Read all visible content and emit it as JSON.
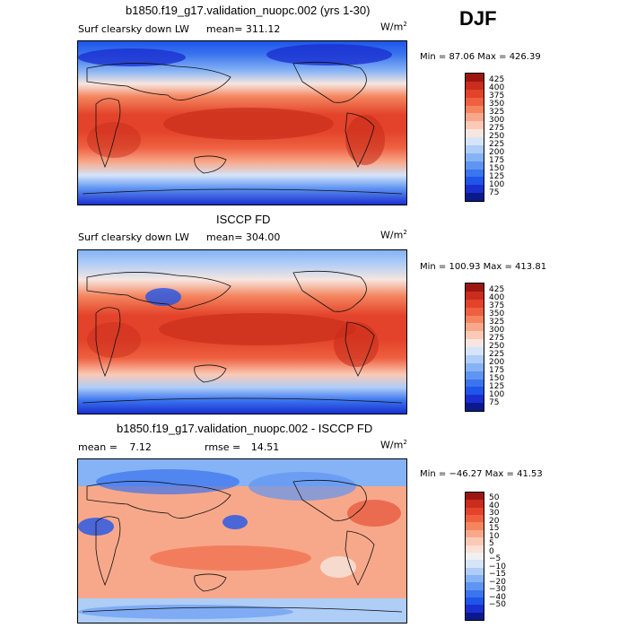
{
  "season": "DJF",
  "units": "W/m",
  "units_sup": "2",
  "palette_pos": [
    "#0a1a8c",
    "#1a2fd0",
    "#1f55e8",
    "#3a74ef",
    "#5f95f2",
    "#86b3f5",
    "#aecdf7",
    "#d5e4f9",
    "#f6e6df",
    "#fbc9b5",
    "#f8a88a",
    "#f4855f",
    "#ee6040",
    "#e3432a",
    "#c92d1b",
    "#9c1611"
  ],
  "palette_diff": [
    "#0a1a8c",
    "#1a2fd0",
    "#1f55e8",
    "#3a74ef",
    "#5f95f2",
    "#86b3f5",
    "#aecdf7",
    "#d5e4f9",
    "#f0f0f0",
    "#fbe1d5",
    "#fbc9b5",
    "#f8a88a",
    "#f4855f",
    "#ee6040",
    "#e3432a",
    "#c92d1b",
    "#9c1611"
  ],
  "panels": [
    {
      "title": "b1850.f19_g17.validation_nuopc.002 (yrs 1-30)",
      "variable": "Surf clearsky down LW",
      "mean_label": "mean=",
      "mean": "311.12",
      "minmax": "Min =  87.06 Max = 426.39",
      "cbar_labels": [
        "425",
        "400",
        "375",
        "350",
        "325",
        "300",
        "275",
        "250",
        "225",
        "200",
        "175",
        "150",
        "125",
        "100",
        "75"
      ]
    },
    {
      "title": "ISCCP FD",
      "variable": "Surf clearsky down LW",
      "mean_label": "mean=",
      "mean": "304.00",
      "minmax": "Min = 100.93 Max = 413.81",
      "cbar_labels": [
        "425",
        "400",
        "375",
        "350",
        "325",
        "300",
        "275",
        "250",
        "225",
        "200",
        "175",
        "150",
        "125",
        "100",
        "75"
      ]
    },
    {
      "title": "b1850.f19_g17.validation_nuopc.002 - ISCCP FD",
      "mean_label": "mean =",
      "mean": "7.12",
      "rmse_label": "rmse =",
      "rmse": "14.51",
      "minmax": "Min = −46.27 Max =  41.53",
      "cbar_labels": [
        "50",
        "40",
        "30",
        "20",
        "15",
        "10",
        "5",
        "0",
        "−5",
        "−10",
        "−15",
        "−20",
        "−30",
        "−40",
        "−50"
      ]
    }
  ]
}
